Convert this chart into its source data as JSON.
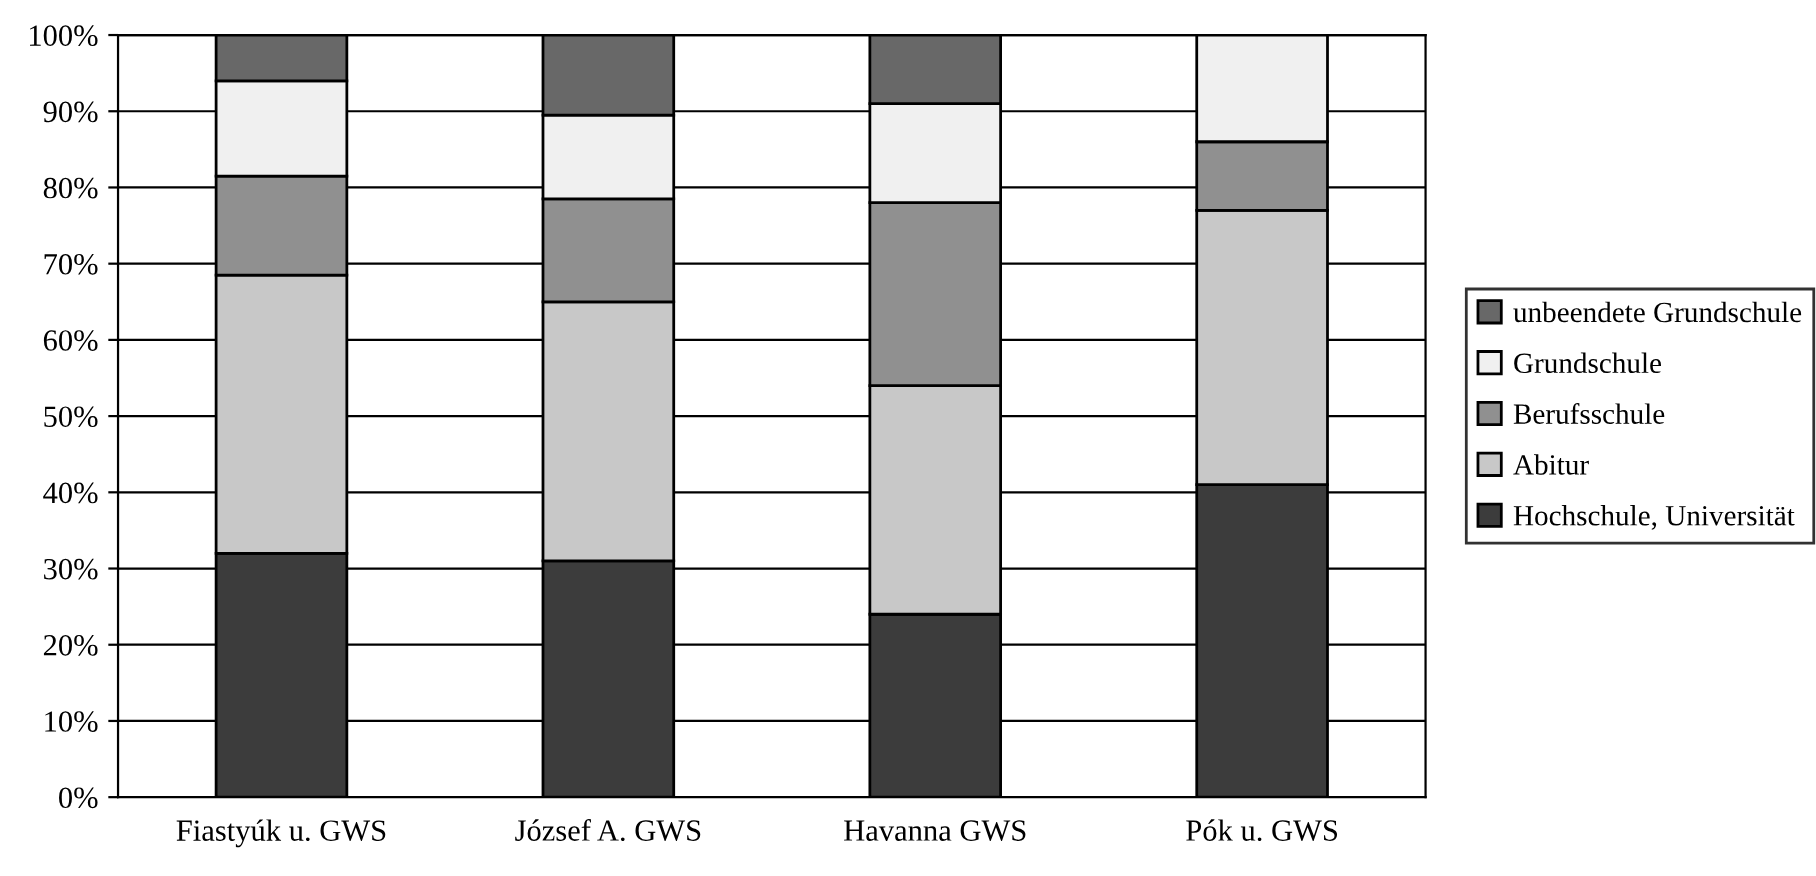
{
  "chart_data": {
    "type": "bar",
    "stacked": true,
    "categories": [
      "Fiastyúk u. GWS",
      "József A. GWS",
      "Havanna GWS",
      "Pók u. GWS"
    ],
    "series": [
      {
        "name": "Hochschule, Universität",
        "color": "#3c3c3c",
        "values": [
          32,
          31,
          24,
          41
        ]
      },
      {
        "name": "Abitur",
        "color": "#c8c8c8",
        "values": [
          36.5,
          34,
          30,
          36
        ]
      },
      {
        "name": "Berufsschule",
        "color": "#909090",
        "values": [
          13,
          13.5,
          24,
          9
        ]
      },
      {
        "name": "Grundschule",
        "color": "#f0f0f0",
        "values": [
          12.5,
          11,
          13,
          14
        ]
      },
      {
        "name": "unbeendete Grundschule",
        "color": "#686868",
        "values": [
          6,
          10.5,
          9,
          null
        ]
      }
    ],
    "ylim": [
      0,
      100
    ],
    "yticks": [
      {
        "value": 0,
        "label": "0%"
      },
      {
        "value": 10,
        "label": "10%"
      },
      {
        "value": 20,
        "label": "20%"
      },
      {
        "value": 30,
        "label": "30%"
      },
      {
        "value": 40,
        "label": "40%"
      },
      {
        "value": 50,
        "label": "50%"
      },
      {
        "value": 60,
        "label": "60%"
      },
      {
        "value": 70,
        "label": "70%"
      },
      {
        "value": 80,
        "label": "80%"
      },
      {
        "value": 90,
        "label": "90%"
      },
      {
        "value": 100,
        "label": "100%"
      }
    ],
    "grid": "y",
    "legend": "right"
  }
}
